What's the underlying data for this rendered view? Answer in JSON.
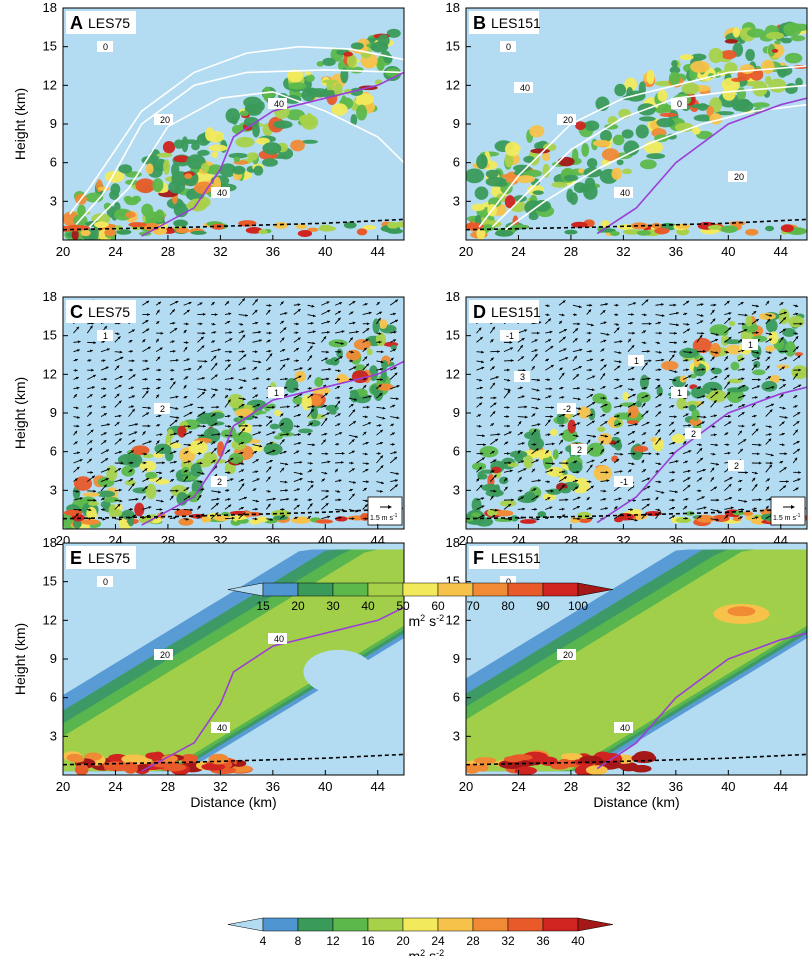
{
  "figure": {
    "panels": [
      {
        "letter": "A",
        "case": "LES75",
        "row": 0,
        "col": 0,
        "kind": "tke",
        "show_xlabel": false,
        "show_ylabel": true
      },
      {
        "letter": "B",
        "case": "LES151",
        "row": 0,
        "col": 1,
        "kind": "tke",
        "show_xlabel": false,
        "show_ylabel": false
      },
      {
        "letter": "C",
        "case": "LES75",
        "row": 1,
        "col": 0,
        "kind": "vector",
        "show_xlabel": true,
        "show_ylabel": true
      },
      {
        "letter": "D",
        "case": "LES151",
        "row": 1,
        "col": 1,
        "kind": "vector",
        "show_xlabel": true,
        "show_ylabel": false
      },
      {
        "letter": "E",
        "case": "LES75",
        "row": 2,
        "col": 0,
        "kind": "mean",
        "show_xlabel": true,
        "show_ylabel": true
      },
      {
        "letter": "F",
        "case": "LES151",
        "row": 2,
        "col": 1,
        "kind": "mean",
        "show_xlabel": true,
        "show_ylabel": false
      }
    ],
    "xlabel": "Distance (km)",
    "ylabel": "Height (km)",
    "x_ticks": [
      "20",
      "24",
      "28",
      "32",
      "36",
      "40",
      "44"
    ],
    "y_ticks": [
      "3",
      "6",
      "9",
      "12",
      "15",
      "18"
    ],
    "vector_ref_label": "1.5 m s",
    "vector_ref_sup": "-1",
    "colorbar_top": {
      "ticks": [
        "15",
        "20",
        "30",
        "40",
        "50",
        "60",
        "70",
        "80",
        "90",
        "100"
      ],
      "unit_base": "m",
      "unit_sup1": "2",
      "unit_mid": " s",
      "unit_sup2": "-2",
      "colors": [
        "#b3dcf2",
        "#4f95d1",
        "#3a9a5a",
        "#5cb84a",
        "#a8d14a",
        "#f2ea5c",
        "#f7c24a",
        "#f08a34",
        "#e85a2a",
        "#cf2420",
        "#a51818"
      ]
    },
    "colorbar_bottom": {
      "ticks": [
        "4",
        "8",
        "12",
        "16",
        "20",
        "24",
        "28",
        "32",
        "36",
        "40"
      ],
      "unit_base": "m",
      "unit_sup1": "2",
      "unit_mid": " s",
      "unit_sup2": "-2",
      "colors": [
        "#b3dcf2",
        "#4f95d1",
        "#3a9a5a",
        "#5cb84a",
        "#a8d14a",
        "#f2ea5c",
        "#f7c24a",
        "#f08a34",
        "#e85a2a",
        "#cf2420",
        "#a51818"
      ]
    },
    "contour_labels": {
      "A": [
        "0",
        "20",
        "40",
        "40"
      ],
      "B": [
        "0",
        "20",
        "40",
        "0",
        "20",
        "40"
      ],
      "C": [
        "1",
        "2",
        "2",
        "1"
      ],
      "D": [
        "-1",
        "-2",
        "-1",
        "1",
        "2",
        "3",
        "2",
        "1",
        "2",
        "1"
      ],
      "E": [
        "0",
        "20",
        "40",
        "40"
      ],
      "F": [
        "0",
        "20",
        "40"
      ]
    },
    "line_colors": {
      "background": "#b3dcf2",
      "isotherm": "#ffffff",
      "purple": "#9b3fd6",
      "dashed": "#000000"
    }
  },
  "chart_data": [
    {
      "type": "heatmap",
      "panel": "A",
      "title": "LES75",
      "xlabel": "",
      "ylabel": "Height (km)",
      "xlim": [
        20,
        46
      ],
      "ylim": [
        0,
        18
      ],
      "colorbar_levels": [
        15,
        20,
        30,
        40,
        50,
        60,
        70,
        80,
        90,
        100
      ],
      "purple_line": {
        "x": [
          26,
          30,
          32,
          33,
          36,
          40,
          44,
          46
        ],
        "y": [
          0.3,
          2.5,
          5.5,
          8,
          10,
          11,
          12,
          13
        ]
      },
      "dashed_line": {
        "x": [
          20,
          30,
          40,
          46
        ],
        "y": [
          0.8,
          1.0,
          1.3,
          1.6
        ]
      },
      "contours": [
        {
          "label": "0",
          "x": [
            20.5,
            22,
            26,
            30,
            34,
            38,
            42,
            46
          ],
          "y": [
            2,
            4,
            10,
            13,
            14.5,
            15,
            14.8,
            14
          ]
        },
        {
          "label": "20",
          "x": [
            21,
            23,
            26,
            30,
            34,
            40,
            46
          ],
          "y": [
            1.2,
            3.5,
            9,
            12,
            13,
            13.2,
            13
          ]
        },
        {
          "label": "40",
          "x": [
            22,
            25,
            28,
            32,
            36,
            40,
            44,
            46
          ],
          "y": [
            1,
            4,
            8.8,
            11,
            11.5,
            10,
            8,
            6
          ]
        }
      ]
    },
    {
      "type": "heatmap",
      "panel": "B",
      "title": "LES151",
      "xlabel": "",
      "ylabel": "",
      "xlim": [
        20,
        46
      ],
      "ylim": [
        0,
        18
      ],
      "colorbar_levels": [
        15,
        20,
        30,
        40,
        50,
        60,
        70,
        80,
        90,
        100
      ],
      "purple_line": {
        "x": [
          30,
          33,
          36,
          40,
          44,
          46
        ],
        "y": [
          0.5,
          2.5,
          6,
          9,
          10.5,
          11
        ]
      },
      "dashed_line": {
        "x": [
          20,
          30,
          40,
          46
        ],
        "y": [
          0.8,
          1.0,
          1.3,
          1.6
        ]
      },
      "contours": [
        {
          "label": "0",
          "x": [
            21,
            24,
            28,
            32,
            36,
            40,
            46
          ],
          "y": [
            1,
            5,
            9,
            11,
            12,
            13,
            13.5
          ]
        },
        {
          "label": "20",
          "x": [
            22,
            25,
            28,
            32,
            36,
            40,
            46
          ],
          "y": [
            1,
            4,
            7,
            9.5,
            11,
            11.5,
            12
          ]
        },
        {
          "label": "40",
          "x": [
            23,
            26,
            30,
            34,
            38,
            42,
            46
          ],
          "y": [
            0.8,
            3,
            5.5,
            7.5,
            9,
            10,
            10.5
          ]
        }
      ]
    },
    {
      "type": "heatmap",
      "panel": "C",
      "title": "LES75",
      "xlabel": "Distance (km)",
      "ylabel": "Height (km)",
      "xlim": [
        20,
        46
      ],
      "ylim": [
        0,
        18
      ],
      "colorbar_levels": [
        15,
        20,
        30,
        40,
        50,
        60,
        70,
        80,
        90,
        100
      ],
      "purple_line": {
        "x": [
          26,
          30,
          32,
          33,
          36,
          40,
          44,
          46
        ],
        "y": [
          0.3,
          2.5,
          5.5,
          8,
          10,
          11,
          12,
          13
        ]
      },
      "dashed_line": {
        "x": [
          20,
          30,
          40,
          46
        ],
        "y": [
          0.8,
          1.0,
          1.3,
          1.6
        ]
      },
      "reference_vector": "1.5 m s-1"
    },
    {
      "type": "heatmap",
      "panel": "D",
      "title": "LES151",
      "xlabel": "Distance (km)",
      "ylabel": "",
      "xlim": [
        20,
        46
      ],
      "ylim": [
        0,
        18
      ],
      "colorbar_levels": [
        15,
        20,
        30,
        40,
        50,
        60,
        70,
        80,
        90,
        100
      ],
      "purple_line": {
        "x": [
          30,
          33,
          36,
          40,
          44,
          46
        ],
        "y": [
          0.5,
          2.5,
          6,
          9,
          10.5,
          11
        ]
      },
      "dashed_line": {
        "x": [
          20,
          30,
          40,
          46
        ],
        "y": [
          0.8,
          1.0,
          1.3,
          1.6
        ]
      },
      "reference_vector": "1.5 m s-1"
    },
    {
      "type": "heatmap",
      "panel": "E",
      "title": "LES75",
      "xlabel": "Distance (km)",
      "ylabel": "Height (km)",
      "xlim": [
        20,
        46
      ],
      "ylim": [
        0,
        18
      ],
      "colorbar_levels": [
        4,
        8,
        12,
        16,
        20,
        24,
        28,
        32,
        36,
        40
      ],
      "purple_line": {
        "x": [
          26,
          30,
          32,
          33,
          36,
          40,
          44,
          46
        ],
        "y": [
          0.3,
          2.5,
          5.5,
          8,
          10,
          11,
          12,
          13
        ]
      },
      "dashed_line": {
        "x": [
          20,
          30,
          40,
          46
        ],
        "y": [
          0.8,
          1.0,
          1.3,
          1.6
        ]
      }
    },
    {
      "type": "heatmap",
      "panel": "F",
      "title": "LES151",
      "xlabel": "Distance (km)",
      "ylabel": "",
      "xlim": [
        20,
        46
      ],
      "ylim": [
        0,
        18
      ],
      "colorbar_levels": [
        4,
        8,
        12,
        16,
        20,
        24,
        28,
        32,
        36,
        40
      ],
      "purple_line": {
        "x": [
          30,
          33,
          36,
          40,
          44,
          46
        ],
        "y": [
          0.5,
          2.5,
          6,
          9,
          10.5,
          11
        ]
      },
      "dashed_line": {
        "x": [
          20,
          30,
          40,
          46
        ],
        "y": [
          0.8,
          1.0,
          1.3,
          1.6
        ]
      }
    }
  ]
}
